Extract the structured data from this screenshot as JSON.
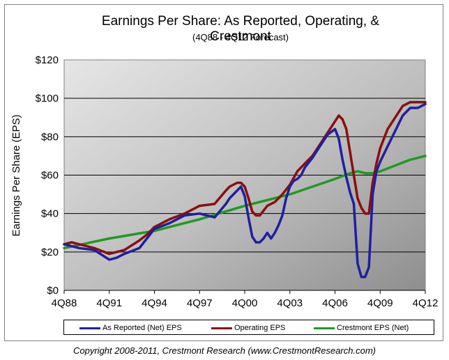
{
  "chart_data": {
    "type": "line",
    "title": "Earnings Per Share: As Reported, Operating, & Crestmont",
    "subtitle": "(4Q88 - 4Q12 Forecast)",
    "ylabel": "Earnings Per Share (EPS)",
    "xlabel": "",
    "x_start": "4Q88",
    "x_end": "4Q12",
    "x_ticks": [
      "4Q88",
      "4Q91",
      "4Q94",
      "4Q97",
      "4Q00",
      "4Q03",
      "4Q06",
      "4Q09",
      "4Q12"
    ],
    "y_ticks": [
      "$0",
      "$20",
      "$40",
      "$60",
      "$80",
      "$100",
      "$120"
    ],
    "ylim": [
      0,
      120
    ],
    "grid": true,
    "legend_placement": "bottom",
    "series": [
      {
        "name": "As Reported (Net) EPS",
        "color": "#1f1fa0",
        "points": [
          [
            "4Q88",
            24
          ],
          [
            "4Q89",
            22
          ],
          [
            "4Q90",
            21
          ],
          [
            "4Q91",
            16
          ],
          [
            "2Q92",
            17
          ],
          [
            "4Q92",
            19
          ],
          [
            "4Q93",
            22
          ],
          [
            "2Q94",
            27
          ],
          [
            "4Q94",
            32
          ],
          [
            "4Q95",
            35
          ],
          [
            "4Q96",
            39
          ],
          [
            "4Q97",
            40
          ],
          [
            "4Q98",
            38
          ],
          [
            "3Q99",
            45
          ],
          [
            "4Q99",
            48
          ],
          [
            "2Q00",
            52
          ],
          [
            "3Q00",
            54
          ],
          [
            "4Q00",
            49
          ],
          [
            "1Q01",
            38
          ],
          [
            "2Q01",
            28
          ],
          [
            "3Q01",
            25
          ],
          [
            "4Q01",
            25
          ],
          [
            "1Q02",
            27
          ],
          [
            "2Q02",
            30
          ],
          [
            "3Q02",
            27
          ],
          [
            "4Q02",
            30
          ],
          [
            "1Q03",
            34
          ],
          [
            "2Q03",
            39
          ],
          [
            "3Q03",
            48
          ],
          [
            "4Q03",
            54
          ],
          [
            "1Q04",
            57
          ],
          [
            "2Q04",
            58
          ],
          [
            "3Q04",
            60
          ],
          [
            "4Q04",
            64
          ],
          [
            "2Q05",
            69
          ],
          [
            "4Q05",
            75
          ],
          [
            "2Q06",
            81
          ],
          [
            "4Q06",
            84
          ],
          [
            "1Q07",
            79
          ],
          [
            "2Q07",
            68
          ],
          [
            "3Q07",
            59
          ],
          [
            "4Q07",
            51
          ],
          [
            "1Q08",
            45
          ],
          [
            "2Q08",
            14
          ],
          [
            "3Q08",
            7
          ],
          [
            "4Q08",
            7
          ],
          [
            "1Q09",
            12
          ],
          [
            "2Q09",
            50
          ],
          [
            "3Q09",
            62
          ],
          [
            "4Q09",
            67
          ],
          [
            "2Q10",
            75
          ],
          [
            "4Q10",
            83
          ],
          [
            "2Q11",
            91
          ],
          [
            "4Q11",
            95
          ],
          [
            "2Q12",
            95
          ],
          [
            "4Q12",
            97
          ]
        ]
      },
      {
        "name": "Operating EPS",
        "color": "#8b0e0e",
        "points": [
          [
            "4Q88",
            24
          ],
          [
            "2Q89",
            25
          ],
          [
            "4Q89",
            24
          ],
          [
            "4Q90",
            22
          ],
          [
            "4Q91",
            19
          ],
          [
            "2Q92",
            20
          ],
          [
            "4Q92",
            21
          ],
          [
            "4Q93",
            26
          ],
          [
            "2Q94",
            29
          ],
          [
            "4Q94",
            33
          ],
          [
            "4Q95",
            37
          ],
          [
            "4Q96",
            40
          ],
          [
            "4Q97",
            44
          ],
          [
            "4Q98",
            45
          ],
          [
            "3Q99",
            52
          ],
          [
            "4Q99",
            54
          ],
          [
            "2Q00",
            56
          ],
          [
            "3Q00",
            56
          ],
          [
            "4Q00",
            54
          ],
          [
            "1Q01",
            48
          ],
          [
            "2Q01",
            41
          ],
          [
            "3Q01",
            39
          ],
          [
            "4Q01",
            39
          ],
          [
            "2Q02",
            44
          ],
          [
            "4Q02",
            46
          ],
          [
            "2Q03",
            50
          ],
          [
            "4Q03",
            55
          ],
          [
            "2Q04",
            62
          ],
          [
            "4Q04",
            66
          ],
          [
            "2Q05",
            70
          ],
          [
            "4Q05",
            76
          ],
          [
            "2Q06",
            82
          ],
          [
            "4Q06",
            88
          ],
          [
            "1Q07",
            91
          ],
          [
            "2Q07",
            89
          ],
          [
            "3Q07",
            84
          ],
          [
            "4Q07",
            72
          ],
          [
            "1Q08",
            60
          ],
          [
            "2Q08",
            48
          ],
          [
            "3Q08",
            43
          ],
          [
            "4Q08",
            40
          ],
          [
            "1Q09",
            40
          ],
          [
            "2Q09",
            56
          ],
          [
            "3Q09",
            66
          ],
          [
            "4Q09",
            74
          ],
          [
            "2Q10",
            84
          ],
          [
            "4Q10",
            90
          ],
          [
            "2Q11",
            96
          ],
          [
            "4Q11",
            98
          ],
          [
            "2Q12",
            98
          ],
          [
            "4Q12",
            98
          ]
        ]
      },
      {
        "name": "Crestmont EPS (Net)",
        "color": "#1f9a1f",
        "points": [
          [
            "4Q88",
            22
          ],
          [
            "4Q91",
            27
          ],
          [
            "4Q94",
            31
          ],
          [
            "4Q97",
            37
          ],
          [
            "4Q00",
            44
          ],
          [
            "4Q03",
            50
          ],
          [
            "4Q06",
            58
          ],
          [
            "4Q07",
            61
          ],
          [
            "2Q08",
            62
          ],
          [
            "4Q08",
            61
          ],
          [
            "2Q09",
            61
          ],
          [
            "4Q09",
            62
          ],
          [
            "4Q10",
            65
          ],
          [
            "4Q11",
            68
          ],
          [
            "4Q12",
            70
          ]
        ]
      }
    ]
  },
  "legend": [
    "As Reported (Net) EPS",
    "Operating EPS",
    "Crestmont EPS (Net)"
  ],
  "copyright": "Copyright 2008-2011, Crestmont Research (www.CrestmontResearch.com)"
}
